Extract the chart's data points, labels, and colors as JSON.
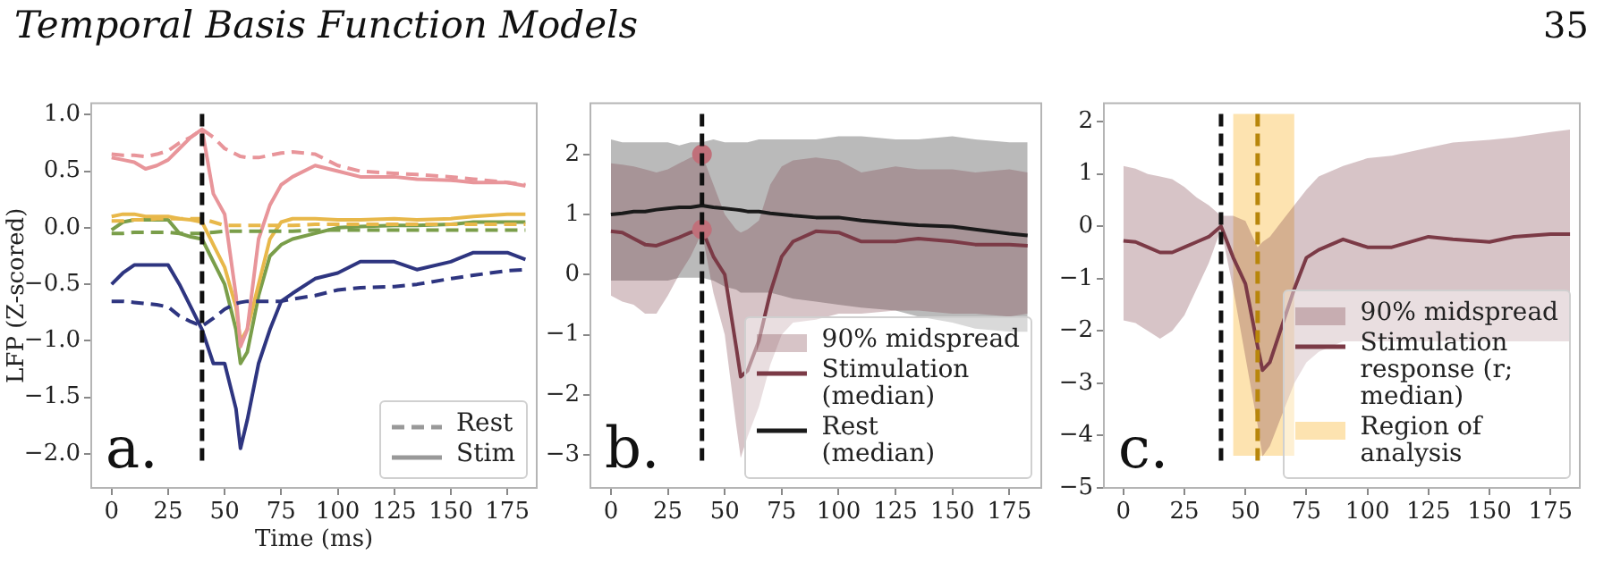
{
  "chart_data": [
    {
      "type": "line",
      "title": "Temporal Basis Function Models",
      "xlabel": "Time (ms)",
      "ylabel": "LFP (Z-scored)",
      "x": [
        0,
        5,
        10,
        15,
        20,
        25,
        30,
        35,
        40,
        45,
        50,
        55,
        57,
        60,
        65,
        70,
        75,
        80,
        90,
        100,
        110,
        125,
        135,
        150,
        160,
        175,
        183
      ],
      "series": [
        {
          "color": "#e8959a",
          "line_style": "dashed",
          "values": [
            0.65,
            0.64,
            0.64,
            0.63,
            0.65,
            0.68,
            0.75,
            0.8,
            0.87,
            0.8,
            0.7,
            0.65,
            0.63,
            0.62,
            0.62,
            0.64,
            0.66,
            0.67,
            0.65,
            0.55,
            0.5,
            0.48,
            0.47,
            0.45,
            0.43,
            0.4,
            0.38
          ]
        },
        {
          "color": "#e8b84a",
          "line_style": "dashed",
          "values": [
            0.06,
            0.06,
            0.07,
            0.07,
            0.08,
            0.08,
            0.08,
            0.08,
            0.08,
            0.05,
            0.02,
            0.02,
            0.02,
            0.02,
            0.02,
            0.02,
            0.02,
            0.02,
            0.03,
            0.03,
            0.03,
            0.03,
            0.03,
            0.03,
            0.03,
            0.03,
            0.03
          ]
        },
        {
          "color": "#7a9e4a",
          "line_style": "dashed",
          "values": [
            -0.05,
            -0.05,
            -0.04,
            -0.04,
            -0.04,
            -0.04,
            -0.05,
            -0.05,
            -0.05,
            -0.04,
            -0.03,
            -0.03,
            -0.03,
            -0.03,
            -0.03,
            -0.03,
            -0.03,
            -0.03,
            -0.02,
            -0.02,
            -0.02,
            -0.02,
            -0.02,
            -0.02,
            -0.02,
            -0.02,
            -0.02
          ]
        },
        {
          "color": "#2e3580",
          "line_style": "dashed",
          "values": [
            -0.65,
            -0.65,
            -0.66,
            -0.67,
            -0.68,
            -0.7,
            -0.78,
            -0.83,
            -0.87,
            -0.8,
            -0.72,
            -0.67,
            -0.66,
            -0.65,
            -0.65,
            -0.65,
            -0.65,
            -0.63,
            -0.6,
            -0.55,
            -0.53,
            -0.52,
            -0.5,
            -0.45,
            -0.42,
            -0.38,
            -0.37
          ]
        },
        {
          "color": "#e8959a",
          "line_style": "solid",
          "values": [
            0.62,
            0.6,
            0.58,
            0.52,
            0.55,
            0.6,
            0.7,
            0.8,
            0.87,
            0.3,
            0.12,
            -0.6,
            -1.05,
            -0.9,
            -0.1,
            0.2,
            0.38,
            0.45,
            0.55,
            0.5,
            0.45,
            0.45,
            0.43,
            0.42,
            0.4,
            0.4,
            0.37
          ]
        },
        {
          "color": "#e8b84a",
          "line_style": "solid",
          "values": [
            0.1,
            0.12,
            0.12,
            0.1,
            0.1,
            0.1,
            0.08,
            0.07,
            0.05,
            -0.15,
            -0.35,
            -0.7,
            -1.0,
            -0.9,
            -0.5,
            -0.1,
            0.05,
            0.08,
            0.08,
            0.07,
            0.07,
            0.08,
            0.07,
            0.08,
            0.1,
            0.12,
            0.12
          ]
        },
        {
          "color": "#7a9e4a",
          "line_style": "solid",
          "values": [
            -0.02,
            0.05,
            0.07,
            0.07,
            0.07,
            0.07,
            -0.05,
            -0.08,
            -0.1,
            -0.3,
            -0.5,
            -0.9,
            -1.2,
            -1.1,
            -0.6,
            -0.25,
            -0.15,
            -0.1,
            -0.05,
            0,
            0.01,
            0.02,
            0.02,
            0.03,
            0.05,
            0.05,
            0.05
          ]
        },
        {
          "color": "#2e3580",
          "line_style": "solid",
          "values": [
            -0.5,
            -0.4,
            -0.33,
            -0.33,
            -0.33,
            -0.33,
            -0.5,
            -0.7,
            -0.9,
            -1.2,
            -1.2,
            -1.6,
            -1.95,
            -1.7,
            -1.2,
            -0.9,
            -0.65,
            -0.58,
            -0.45,
            -0.4,
            -0.3,
            -0.3,
            -0.37,
            -0.3,
            -0.22,
            -0.22,
            -0.28
          ]
        }
      ],
      "xlim": [
        -9,
        188
      ],
      "ylim": [
        -2.3,
        1.1
      ],
      "xticks": [
        0,
        25,
        50,
        75,
        100,
        125,
        150,
        175
      ],
      "yticks": [
        {
          "value": -2,
          "label": "−2.0"
        },
        {
          "value": -1.5,
          "label": "−1.5"
        },
        {
          "value": -1,
          "label": "−1.0"
        },
        {
          "value": -0.5,
          "label": "−0.5"
        },
        {
          "value": 0,
          "label": "0.0"
        },
        0.5,
        {
          "value": 1,
          "label": "1.0"
        }
      ],
      "ref_lines": [
        {
          "axis": "x",
          "value": 40,
          "color": "#111111",
          "line_style": "dashed"
        }
      ],
      "annotations": [
        "a.",
        "Rest",
        "Stim"
      ]
    },
    {
      "type": "line",
      "x": [
        0,
        5,
        10,
        15,
        20,
        25,
        30,
        35,
        40,
        45,
        50,
        55,
        57,
        60,
        65,
        70,
        75,
        80,
        90,
        100,
        110,
        125,
        135,
        150,
        160,
        175,
        183
      ],
      "series": [
        {
          "name": "Stimulation (median)",
          "color": "#7b3a46",
          "values": [
            0.72,
            0.7,
            0.6,
            0.5,
            0.48,
            0.55,
            0.62,
            0.7,
            0.75,
            0.3,
            0,
            -1.2,
            -1.7,
            -1.6,
            -1.1,
            -0.3,
            0.3,
            0.55,
            0.72,
            0.7,
            0.55,
            0.55,
            0.6,
            0.55,
            0.5,
            0.5,
            0.48
          ],
          "lower": [
            -0.35,
            -0.45,
            -0.5,
            -0.65,
            -0.65,
            -0.35,
            0,
            0.3,
            0.7,
            -0.3,
            -1,
            -2.5,
            -3.05,
            -2.7,
            -2.2,
            -1.5,
            -1,
            -0.8,
            -0.75,
            -0.65,
            -0.65,
            -0.6,
            -0.6,
            -0.65,
            -0.65,
            -0.7,
            -0.65
          ],
          "upper": [
            1.85,
            1.83,
            1.8,
            1.75,
            1.7,
            1.75,
            1.85,
            1.95,
            2,
            1.5,
            1,
            0.75,
            0.7,
            0.75,
            0.9,
            1.5,
            1.8,
            1.9,
            1.95,
            1.9,
            1.7,
            1.8,
            1.75,
            1.75,
            1.7,
            1.75,
            1.7
          ]
        },
        {
          "name": "Rest (median)",
          "color": "#1a1a1a",
          "values": [
            1,
            1.02,
            1.05,
            1.05,
            1.08,
            1.1,
            1.12,
            1.12,
            1.15,
            1.12,
            1.1,
            1.08,
            1.07,
            1.05,
            1.05,
            1.02,
            1,
            0.98,
            0.95,
            0.95,
            0.9,
            0.85,
            0.82,
            0.8,
            0.75,
            0.68,
            0.65
          ],
          "lower": [
            -0.1,
            -0.1,
            -0.1,
            -0.1,
            -0.1,
            -0.1,
            -0.05,
            -0.05,
            -0.05,
            -0.1,
            -0.2,
            -0.25,
            -0.3,
            -0.3,
            -0.3,
            -0.3,
            -0.35,
            -0.4,
            -0.45,
            -0.5,
            -0.55,
            -0.6,
            -0.7,
            -0.8,
            -0.9,
            -0.95,
            -0.95
          ],
          "upper": [
            2.25,
            2.2,
            2.2,
            2.2,
            2.2,
            2.2,
            2.15,
            2.2,
            2.2,
            2.25,
            2.2,
            2.2,
            2.2,
            2.2,
            2.25,
            2.25,
            2.25,
            2.25,
            2.25,
            2.3,
            2.3,
            2.25,
            2.25,
            2.3,
            2.25,
            2.2,
            2.2
          ]
        },
        {
          "type": "scatter",
          "color": "#c0707a",
          "x": [
            40,
            40
          ],
          "values": [
            2,
            0.75
          ]
        }
      ],
      "xlim": [
        -9,
        189
      ],
      "ylim": [
        -3.55,
        2.85
      ],
      "xticks": [
        0,
        25,
        50,
        75,
        100,
        125,
        150,
        175
      ],
      "yticks": [
        {
          "value": -3,
          "label": "−3"
        },
        {
          "value": -2,
          "label": "−2"
        },
        {
          "value": -1,
          "label": "−1"
        },
        0,
        1,
        2
      ],
      "ref_lines": [
        {
          "axis": "x",
          "value": 40,
          "color": "#111111",
          "line_style": "dashed"
        }
      ],
      "legend": "bottom right",
      "annotations": [
        "b.",
        "90% midspread"
      ]
    },
    {
      "type": "line",
      "x": [
        0,
        5,
        10,
        15,
        20,
        25,
        30,
        35,
        40,
        45,
        50,
        55,
        57,
        60,
        65,
        70,
        75,
        80,
        90,
        100,
        110,
        125,
        135,
        150,
        160,
        175,
        183
      ],
      "series": [
        {
          "name": "Stimulation response (r; median)",
          "color": "#7b3a46",
          "values": [
            -0.28,
            -0.3,
            -0.4,
            -0.5,
            -0.5,
            -0.4,
            -0.3,
            -0.2,
            0,
            -0.6,
            -1.1,
            -2.3,
            -2.75,
            -2.6,
            -1.9,
            -1.2,
            -0.6,
            -0.45,
            -0.25,
            -0.4,
            -0.4,
            -0.2,
            -0.25,
            -0.3,
            -0.2,
            -0.15,
            -0.15
          ],
          "lower": [
            -1.8,
            -1.85,
            -2,
            -2.15,
            -2,
            -1.7,
            -1.2,
            -0.7,
            -0.05,
            -1.2,
            -2.5,
            -3.8,
            -4.4,
            -4.2,
            -3.6,
            -3,
            -2.6,
            -2.4,
            -2.2,
            -2.2,
            -2.2,
            -2.2,
            -2.2,
            -2.2,
            -2.2,
            -2.2,
            -2.2
          ],
          "upper": [
            1.15,
            1.1,
            1,
            0.95,
            0.9,
            0.75,
            0.55,
            0.4,
            0.2,
            0.2,
            0.1,
            -0.4,
            -0.3,
            -0.2,
            0.1,
            0.4,
            0.7,
            0.95,
            1.15,
            1.3,
            1.35,
            1.5,
            1.6,
            1.65,
            1.7,
            1.8,
            1.85
          ]
        }
      ],
      "xlim": [
        -8,
        187
      ],
      "ylim": [
        -5,
        2.35
      ],
      "xticks": [
        0,
        25,
        50,
        75,
        100,
        125,
        150,
        175
      ],
      "yticks": [
        {
          "value": -5,
          "label": "−5"
        },
        {
          "value": -4,
          "label": "−4"
        },
        {
          "value": -3,
          "label": "−3"
        },
        {
          "value": -2,
          "label": "−2"
        },
        {
          "value": -1,
          "label": "−1"
        },
        0,
        1,
        2
      ],
      "ref_lines": [
        {
          "axis": "x",
          "value": 40,
          "color": "#111111",
          "line_style": "dashed"
        },
        {
          "axis": "x",
          "value": 55,
          "color": "#b8860b",
          "line_style": "dashed"
        }
      ],
      "bands": [
        {
          "axis": "x",
          "from": 45,
          "to": 70,
          "label": "Region of analysis",
          "color": "#fde3b0"
        }
      ],
      "legend": "bottom right",
      "annotations": [
        "c.",
        "90% midspread",
        "35"
      ]
    }
  ]
}
